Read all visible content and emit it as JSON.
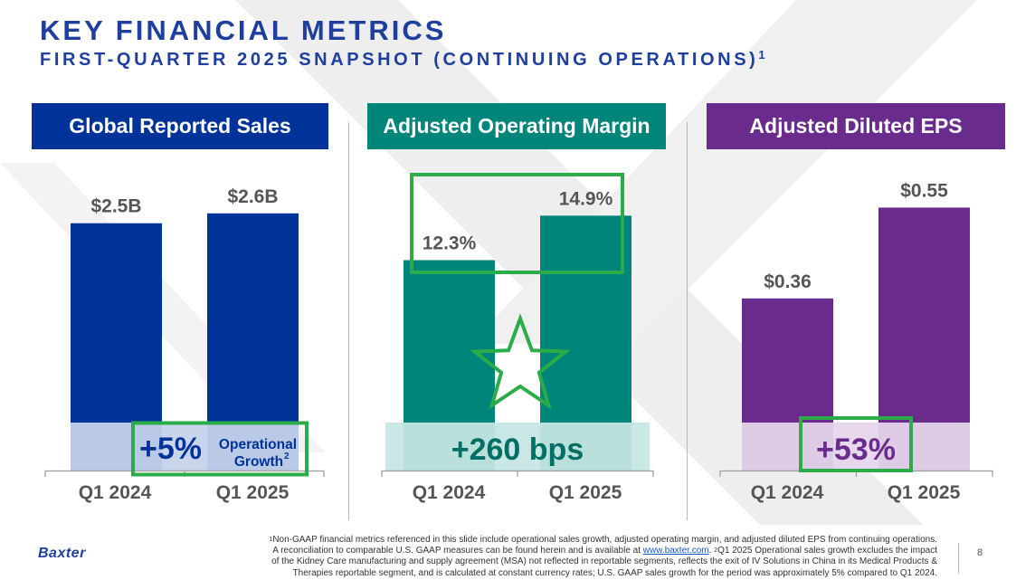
{
  "header": {
    "title": "KEY FINANCIAL METRICS",
    "subtitle": "FIRST-QUARTER 2025 SNAPSHOT (CONTINUING OPERATIONS)",
    "subtitle_sup": "1"
  },
  "colors": {
    "title": "#1e3f9e",
    "sales": "#003399",
    "margin": "#00857a",
    "eps": "#6a2c8c",
    "highlight": "#2bac48",
    "sales_band": "#c6d2ea",
    "margin_band": "#c6e6e2",
    "eps_band": "#e6d6ec"
  },
  "chart_data": [
    {
      "type": "bar",
      "title": "Global Reported Sales",
      "categories": [
        "Q1 2024",
        "Q1 2025"
      ],
      "values": [
        2.5,
        2.6
      ],
      "value_labels": [
        "$2.5B",
        "$2.6B"
      ],
      "ylim": [
        0,
        2.9
      ],
      "callout_value": "+5%",
      "callout_label_1": "Operational",
      "callout_label_2": "Growth",
      "callout_sup": "2"
    },
    {
      "type": "bar",
      "title": "Adjusted Operating Margin",
      "categories": [
        "Q1 2024",
        "Q1 2025"
      ],
      "values": [
        12.3,
        14.9
      ],
      "value_labels": [
        "12.3%",
        "14.9%"
      ],
      "ylim": [
        0,
        16.77
      ],
      "callout_value": "+260 bps"
    },
    {
      "type": "bar",
      "title": "Adjusted Diluted EPS",
      "categories": [
        "Q1 2024",
        "Q1 2025"
      ],
      "values": [
        0.36,
        0.55
      ],
      "value_labels": [
        "$0.36",
        "$0.55"
      ],
      "ylim": [
        0,
        0.6
      ],
      "callout_value": "+53%"
    }
  ],
  "footer": {
    "fn1_sup": "1",
    "fn1_a": "Non-GAAP financial metrics referenced in this slide include operational sales growth, adjusted operating margin, and adjusted diluted EPS from continuing operations.",
    "fn1_b": "A reconciliation to comparable U.S. GAAP measures can be found herein and is available at",
    "link": "www.baxter.com",
    "fn2_sup": "2",
    "fn2_a": "Q1 2025 Operational sales growth excludes the impact",
    "fn2_b": "of the Kidney Care manufacturing and supply agreement (MSA) not reflected in reportable segments, reflects the exit of IV Solutions in China in its Medical Products &",
    "fn2_c": "Therapies reportable segment, and is calculated at constant currency rates; U.S. GAAP sales growth for the period was approximately 5% compared to Q1 2024.",
    "logo": "Baxter",
    "page_number": "8"
  }
}
